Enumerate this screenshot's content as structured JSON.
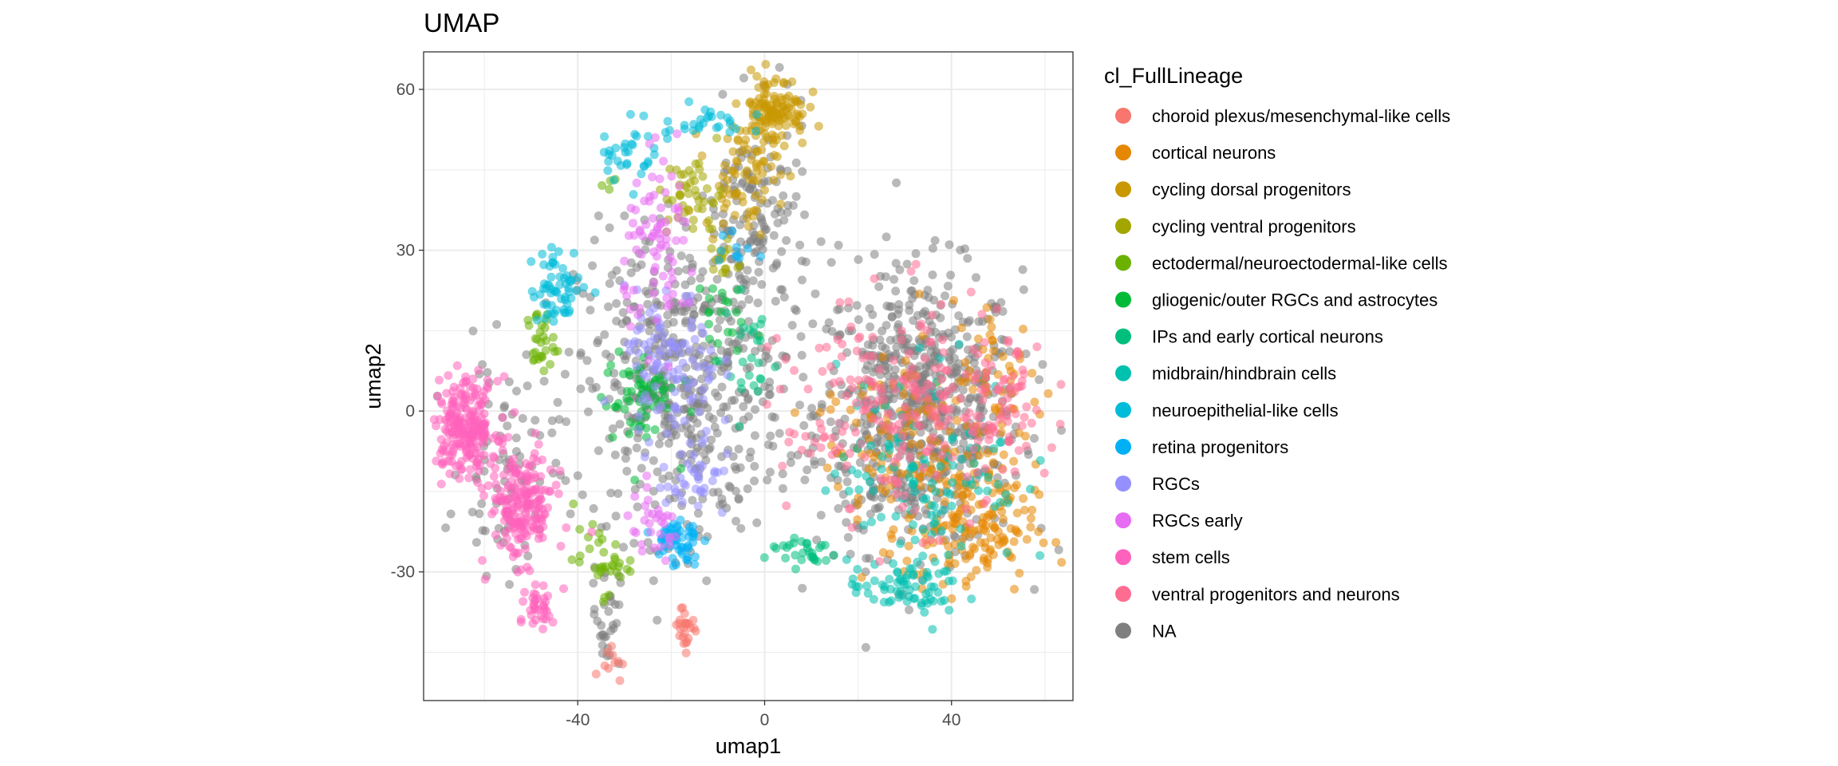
{
  "chart_data": {
    "type": "scatter",
    "title": "UMAP",
    "xlabel": "umap1",
    "ylabel": "umap2",
    "xlim": [
      -73,
      66
    ],
    "ylim": [
      -54,
      67
    ],
    "x_ticks": [
      -40,
      0,
      40
    ],
    "y_ticks": [
      60,
      30,
      0,
      -30
    ],
    "x_tick_labels": [
      "-40",
      "0",
      "40"
    ],
    "y_tick_labels": [
      "60",
      "30",
      "0",
      "-30"
    ],
    "grid": true,
    "legend_position": "right",
    "legend_title": "cl_FullLineage",
    "series": [
      {
        "name": "choroid plexus/mesenchymal-like cells",
        "color": "#F8766D",
        "clusters": [
          {
            "cx": -17,
            "cy": -40,
            "sx": 1.5,
            "sy": 2.2,
            "n": 25
          },
          {
            "cx": -33,
            "cy": -46,
            "sx": 1.2,
            "sy": 2,
            "n": 10
          }
        ]
      },
      {
        "name": "cortical neurons",
        "color": "#E58700",
        "clusters": [
          {
            "cx": 44,
            "cy": -22,
            "sx": 7,
            "sy": 6,
            "n": 160
          },
          {
            "cx": 30,
            "cy": -5,
            "sx": 9,
            "sy": 9,
            "n": 110
          },
          {
            "cx": 50,
            "cy": 5,
            "sx": 5,
            "sy": 8,
            "n": 60
          }
        ]
      },
      {
        "name": "cycling dorsal progenitors",
        "color": "#C99800",
        "clusters": [
          {
            "cx": 2,
            "cy": 56,
            "sx": 3.5,
            "sy": 3.5,
            "n": 120
          },
          {
            "cx": -5,
            "cy": 44,
            "sx": 4,
            "sy": 5,
            "n": 70
          }
        ]
      },
      {
        "name": "cycling ventral progenitors",
        "color": "#A3A500",
        "clusters": [
          {
            "cx": -15,
            "cy": 40,
            "sx": 3,
            "sy": 4,
            "n": 45
          },
          {
            "cx": -9,
            "cy": 28,
            "sx": 2,
            "sy": 2,
            "n": 15
          }
        ]
      },
      {
        "name": "ectodermal/neuroectodermal-like cells",
        "color": "#6BB100",
        "clusters": [
          {
            "cx": -48,
            "cy": 13,
            "sx": 1.5,
            "sy": 3,
            "n": 30
          },
          {
            "cx": -35,
            "cy": -28,
            "sx": 3,
            "sy": 3,
            "n": 35
          },
          {
            "cx": -33,
            "cy": 43,
            "sx": 1,
            "sy": 1,
            "n": 4
          }
        ]
      },
      {
        "name": "gliogenic/outer RGCs and astrocytes",
        "color": "#00BA38",
        "clusters": [
          {
            "cx": -27,
            "cy": 2,
            "sx": 4,
            "sy": 5,
            "n": 60
          },
          {
            "cx": -11,
            "cy": 18,
            "sx": 3,
            "sy": 4,
            "n": 20
          }
        ]
      },
      {
        "name": "IPs and early cortical neurons",
        "color": "#00BF7D",
        "clusters": [
          {
            "cx": 8,
            "cy": -26,
            "sx": 4,
            "sy": 1.5,
            "n": 30
          },
          {
            "cx": -3,
            "cy": 10,
            "sx": 3,
            "sy": 6,
            "n": 25
          }
        ]
      },
      {
        "name": "midbrain/hindbrain cells",
        "color": "#00C0AF",
        "clusters": [
          {
            "cx": 30,
            "cy": -33,
            "sx": 6,
            "sy": 2.5,
            "n": 70
          },
          {
            "cx": 35,
            "cy": -10,
            "sx": 10,
            "sy": 10,
            "n": 120
          }
        ]
      },
      {
        "name": "neuroepithelial-like cells",
        "color": "#00BCD8",
        "clusters": [
          {
            "cx": -44,
            "cy": 23,
            "sx": 3,
            "sy": 3.5,
            "n": 60
          },
          {
            "cx": -30,
            "cy": 48,
            "sx": 3,
            "sy": 2.5,
            "n": 30
          },
          {
            "cx": -14,
            "cy": 54,
            "sx": 5,
            "sy": 1.5,
            "n": 30
          }
        ]
      },
      {
        "name": "retina progenitors",
        "color": "#00B0F6",
        "clusters": [
          {
            "cx": -19,
            "cy": -24,
            "sx": 2.5,
            "sy": 2.5,
            "n": 55
          },
          {
            "cx": -6,
            "cy": 30,
            "sx": 2,
            "sy": 2,
            "n": 10
          }
        ]
      },
      {
        "name": "RGCs",
        "color": "#9590FF",
        "clusters": [
          {
            "cx": -20,
            "cy": 8,
            "sx": 5,
            "sy": 7,
            "n": 100
          },
          {
            "cx": -15,
            "cy": -12,
            "sx": 4,
            "sy": 5,
            "n": 40
          }
        ]
      },
      {
        "name": "RGCs early",
        "color": "#E76BF3",
        "clusters": [
          {
            "cx": -22,
            "cy": 30,
            "sx": 4,
            "sy": 8,
            "n": 80
          },
          {
            "cx": -24,
            "cy": -22,
            "sx": 3,
            "sy": 3,
            "n": 30
          }
        ]
      },
      {
        "name": "stem cells",
        "color": "#FF62BC",
        "clusters": [
          {
            "cx": -64,
            "cy": -3,
            "sx": 3.5,
            "sy": 4.5,
            "n": 230
          },
          {
            "cx": -52,
            "cy": -18,
            "sx": 3.5,
            "sy": 5,
            "n": 190
          },
          {
            "cx": -48,
            "cy": -37,
            "sx": 1.5,
            "sy": 2,
            "n": 35
          }
        ]
      },
      {
        "name": "ventral progenitors and neurons",
        "color": "#FF6C91",
        "clusters": [
          {
            "cx": 30,
            "cy": 0,
            "sx": 13,
            "sy": 10,
            "n": 230
          },
          {
            "cx": 52,
            "cy": 0,
            "sx": 3,
            "sy": 5,
            "n": 40
          }
        ]
      },
      {
        "name": "NA",
        "color": "#7F7F7F",
        "clusters": [
          {
            "cx": 33,
            "cy": 0,
            "sx": 11,
            "sy": 13,
            "n": 700
          },
          {
            "cx": -18,
            "cy": 5,
            "sx": 11,
            "sy": 14,
            "n": 500
          },
          {
            "cx": -2,
            "cy": 35,
            "sx": 6,
            "sy": 10,
            "n": 140
          },
          {
            "cx": -55,
            "cy": -10,
            "sx": 5,
            "sy": 10,
            "n": 80
          },
          {
            "cx": -34,
            "cy": -38,
            "sx": 1.5,
            "sy": 5,
            "n": 30
          }
        ]
      }
    ]
  }
}
